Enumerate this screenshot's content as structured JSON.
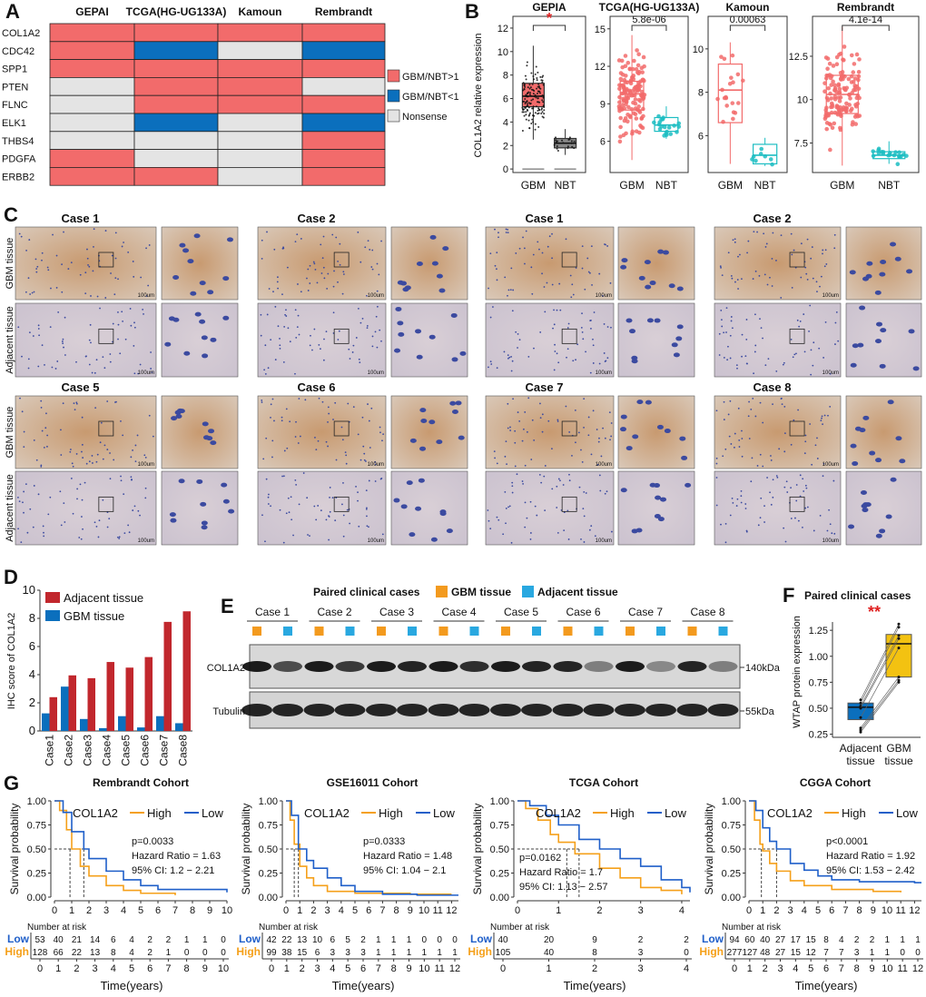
{
  "panel_labels": [
    "A",
    "B",
    "C",
    "D",
    "E",
    "F",
    "G"
  ],
  "panel_a": {
    "datasets": [
      "GEPAI",
      "TCGA(HG-UG133A)",
      "Kamoun",
      "Rembrandt"
    ],
    "genes": [
      "COL1A2",
      "CDC42",
      "SPP1",
      "PTEN",
      "FLNC",
      "ELK1",
      "THBS4",
      "PDGFA",
      "ERBB2"
    ],
    "matrix": [
      [
        "up",
        "up",
        "up",
        "up"
      ],
      [
        "up",
        "down",
        "none",
        "down"
      ],
      [
        "up",
        "up",
        "up",
        "up"
      ],
      [
        "none",
        "up",
        "up",
        "none"
      ],
      [
        "none",
        "up",
        "up",
        "up"
      ],
      [
        "none",
        "down",
        "none",
        "down"
      ],
      [
        "none",
        "none",
        "none",
        "up"
      ],
      [
        "up",
        "none",
        "none",
        "up"
      ],
      [
        "up",
        "up",
        "none",
        "up"
      ]
    ],
    "legend": [
      {
        "key": "up",
        "label": "GBM/NBT>1",
        "color": "#f26b6b"
      },
      {
        "key": "down",
        "label": "GBM/NBT<1",
        "color": "#0b6fbd"
      },
      {
        "key": "none",
        "label": "Nonsense",
        "color": "#e4e4e4"
      }
    ]
  },
  "panel_b": {
    "ylabel": "COL1A2 relative expression",
    "groups": [
      "GBM",
      "NBT"
    ],
    "plots": [
      {
        "title": "GEPIA",
        "annot": "*",
        "ylim": [
          -0.3,
          13
        ],
        "ticks": [
          0,
          2,
          4,
          6,
          8,
          10,
          12
        ],
        "boxes": [
          {
            "q1": 5.3,
            "med": 6.2,
            "q3": 7.3,
            "lo": 2.5,
            "hi": 10.5,
            "color": "#f26b6b"
          },
          {
            "q1": 1.8,
            "med": 2.2,
            "q3": 2.6,
            "lo": 1.2,
            "hi": 3.4,
            "color": "#888888"
          }
        ]
      },
      {
        "title": "TCGA(HG-UG133A)",
        "annot": "5.8e-06",
        "ylim": [
          3.5,
          16
        ],
        "ticks": [
          6,
          9,
          12,
          15
        ],
        "boxes": [
          {
            "q1": 8.5,
            "med": 9.8,
            "q3": 10.8,
            "lo": 4.5,
            "hi": 14.5,
            "color": "#f26b6b"
          },
          {
            "q1": 6.8,
            "med": 7.3,
            "q3": 7.9,
            "lo": 6.2,
            "hi": 8.8,
            "color": "#1cbdc2"
          }
        ]
      },
      {
        "title": "Kamoun",
        "annot": "0.00063",
        "ylim": [
          4.3,
          11.5
        ],
        "ticks": [
          6,
          8,
          10
        ],
        "boxes": [
          {
            "q1": 6.6,
            "med": 8.1,
            "q3": 9.3,
            "lo": 4.7,
            "hi": 10.3,
            "color": "#f26b6b"
          },
          {
            "q1": 4.7,
            "med": 5.1,
            "q3": 5.6,
            "lo": 4.6,
            "hi": 5.9,
            "color": "#1cbdc2"
          }
        ]
      },
      {
        "title": "Rembrandt",
        "annot": "4.1e-14",
        "ylim": [
          5.8,
          14.8
        ],
        "ticks": [
          7.5,
          10,
          12.5
        ],
        "boxes": [
          {
            "q1": 9.2,
            "med": 10.3,
            "q3": 11.4,
            "lo": 6.2,
            "hi": 14.2,
            "color": "#f26b6b"
          },
          {
            "q1": 6.6,
            "med": 6.8,
            "q3": 7.0,
            "lo": 6.3,
            "hi": 7.6,
            "color": "#1cbdc2"
          }
        ]
      }
    ]
  },
  "panel_c": {
    "row_labels": [
      "GBM tissue",
      "Adjacent tissue"
    ],
    "scale_bar": "100um",
    "cases_top": [
      "Case 1",
      "Case 2",
      "Case 1",
      "Case 2"
    ],
    "cases_bottom": [
      "Case 5",
      "Case 6",
      "Case 7",
      "Case 8"
    ]
  },
  "chart_data": [
    {
      "panel": "D",
      "type": "bar",
      "categories": [
        "Case1",
        "Case2",
        "Case3",
        "Case4",
        "Case5",
        "Case6",
        "Case7",
        "Case8"
      ],
      "ylabel": "IHC score of COL1A2",
      "ylim": [
        0,
        10
      ],
      "ticks": [
        0,
        2,
        4,
        6,
        8,
        10
      ],
      "legend": "top-left",
      "series": [
        {
          "name": "Adjacent tissue",
          "color": "#c1272d",
          "values": [
            2.4,
            3.95,
            3.75,
            4.9,
            4.5,
            5.25,
            7.75,
            8.5
          ]
        },
        {
          "name": "GBM tissue",
          "color": "#0b6fbd",
          "values": [
            1.25,
            3.15,
            0.85,
            0.2,
            1.05,
            0.25,
            1.05,
            0.55
          ]
        }
      ]
    },
    {
      "panel": "F",
      "type": "box",
      "title": "Paired clinical cases",
      "annot": "**",
      "ylabel": "WTAP protein expression",
      "categories": [
        "Adjacent tissue",
        "GBM tissue"
      ],
      "ylim": [
        0.22,
        1.33
      ],
      "ticks": [
        0.25,
        0.5,
        0.75,
        1.0,
        1.25
      ],
      "boxes": [
        {
          "q1": 0.39,
          "med": 0.51,
          "q3": 0.55,
          "color": "#0b6fbd"
        },
        {
          "q1": 0.8,
          "med": 1.12,
          "q3": 1.21,
          "color": "#f3c211"
        }
      ],
      "pairs": {
        "adjacent": [
          0.58,
          0.55,
          0.52,
          0.5,
          0.41,
          0.31,
          0.29,
          0.27
        ],
        "gbm": [
          1.31,
          1.28,
          1.2,
          1.17,
          1.08,
          0.8,
          0.77,
          0.75
        ]
      }
    },
    {
      "panel": "G",
      "type": "line",
      "ylabel": "Survival probability",
      "xlabel": "Time(years)",
      "legend_title": "COL1A2",
      "legend": [
        "High",
        "Low"
      ],
      "colors": {
        "High": "#f5a01a",
        "Low": "#1f5fc9"
      },
      "risk_title": "Number at risk",
      "risk_labels": [
        "Low",
        "High"
      ],
      "yticks": [
        "0.00",
        "0.25",
        "0.50",
        "0.75",
        "1.00"
      ],
      "cohorts": [
        {
          "title": "Rembrandt Cohort",
          "xmax": 10,
          "xticks": [
            0,
            1,
            2,
            3,
            4,
            5,
            6,
            7,
            8,
            9,
            10
          ],
          "stats": [
            "p=0.0033",
            "Hazard Ratio = 1.63",
            "95% CI: 1.2 − 2.21"
          ],
          "stats_pos": "right",
          "medians": [
            0.9,
            1.7
          ],
          "high": [
            [
              0,
              1
            ],
            [
              0.3,
              0.9
            ],
            [
              0.7,
              0.7
            ],
            [
              1,
              0.5
            ],
            [
              1.5,
              0.32
            ],
            [
              2,
              0.22
            ],
            [
              3,
              0.12
            ],
            [
              4,
              0.07
            ],
            [
              5,
              0.04
            ],
            [
              7,
              0.02
            ]
          ],
          "low": [
            [
              0,
              1
            ],
            [
              0.5,
              0.88
            ],
            [
              1,
              0.68
            ],
            [
              1.7,
              0.5
            ],
            [
              2,
              0.4
            ],
            [
              3,
              0.27
            ],
            [
              4,
              0.18
            ],
            [
              5,
              0.12
            ],
            [
              6,
              0.08
            ],
            [
              10,
              0.05
            ]
          ],
          "risk_low": [
            53,
            40,
            21,
            14,
            6,
            4,
            2,
            2,
            1,
            1,
            0
          ],
          "risk_high": [
            128,
            66,
            22,
            13,
            8,
            4,
            2,
            1,
            0,
            0,
            0
          ]
        },
        {
          "title": "GSE16011 Cohort",
          "xmax": 12.5,
          "xticks": [
            0,
            1,
            2,
            3,
            4,
            5,
            6,
            7,
            8,
            9,
            10,
            11,
            12
          ],
          "stats": [
            "p=0.0333",
            "Hazard Ratio = 1.48",
            "95% CI: 1.04 − 2.1"
          ],
          "stats_pos": "right",
          "medians": [
            0.6,
            0.9
          ],
          "high": [
            [
              0,
              1
            ],
            [
              0.3,
              0.8
            ],
            [
              0.6,
              0.55
            ],
            [
              1,
              0.32
            ],
            [
              1.5,
              0.2
            ],
            [
              2,
              0.12
            ],
            [
              3,
              0.06
            ],
            [
              5,
              0.04
            ],
            [
              9,
              0.03
            ],
            [
              12,
              0.03
            ]
          ],
          "low": [
            [
              0,
              1
            ],
            [
              0.4,
              0.85
            ],
            [
              0.9,
              0.5
            ],
            [
              1.5,
              0.38
            ],
            [
              2,
              0.3
            ],
            [
              3,
              0.2
            ],
            [
              4,
              0.12
            ],
            [
              5,
              0.06
            ],
            [
              7,
              0.03
            ],
            [
              9.5,
              0.02
            ]
          ],
          "risk_low": [
            42,
            22,
            13,
            10,
            6,
            5,
            2,
            1,
            1,
            1,
            0,
            0,
            0
          ],
          "risk_high": [
            99,
            38,
            15,
            6,
            3,
            3,
            3,
            1,
            1,
            1,
            1,
            1,
            1
          ]
        },
        {
          "title": "TCGA Cohort",
          "xmax": 4.2,
          "xticks": [
            0,
            1,
            2,
            3,
            4
          ],
          "stats": [
            "p=0.0162",
            "Hazard Ratio = 1.7",
            "95% CI: 1.13 − 2.57"
          ],
          "stats_pos": "left",
          "medians": [
            1.2,
            1.5
          ],
          "high": [
            [
              0,
              1
            ],
            [
              0.2,
              0.92
            ],
            [
              0.5,
              0.8
            ],
            [
              0.8,
              0.65
            ],
            [
              1,
              0.57
            ],
            [
              1.4,
              0.45
            ],
            [
              2,
              0.3
            ],
            [
              2.5,
              0.2
            ],
            [
              3,
              0.1
            ],
            [
              3.5,
              0.07
            ],
            [
              4,
              0.03
            ]
          ],
          "low": [
            [
              0,
              1
            ],
            [
              0.3,
              0.95
            ],
            [
              0.7,
              0.85
            ],
            [
              1,
              0.75
            ],
            [
              1.5,
              0.6
            ],
            [
              2,
              0.5
            ],
            [
              2.5,
              0.4
            ],
            [
              3,
              0.32
            ],
            [
              3.5,
              0.18
            ],
            [
              4,
              0.1
            ],
            [
              4.2,
              0.05
            ]
          ],
          "risk_low": [
            40,
            20,
            9,
            2,
            2
          ],
          "risk_high": [
            105,
            40,
            8,
            3,
            0
          ]
        },
        {
          "title": "CGGA Cohort",
          "xmax": 12.5,
          "xticks": [
            0,
            1,
            2,
            3,
            4,
            5,
            6,
            7,
            8,
            9,
            10,
            11,
            12
          ],
          "stats": [
            "p<0.0001",
            "Hazard Ratio = 1.92",
            "95% CI: 1.53 − 2.42"
          ],
          "stats_pos": "right",
          "medians": [
            0.9,
            2
          ],
          "high": [
            [
              0,
              1
            ],
            [
              0.4,
              0.8
            ],
            [
              0.8,
              0.55
            ],
            [
              1,
              0.48
            ],
            [
              1.5,
              0.35
            ],
            [
              2,
              0.27
            ],
            [
              3,
              0.17
            ],
            [
              4,
              0.12
            ],
            [
              6,
              0.08
            ],
            [
              9,
              0.06
            ],
            [
              11,
              0.05
            ]
          ],
          "low": [
            [
              0,
              1
            ],
            [
              0.5,
              0.9
            ],
            [
              1,
              0.72
            ],
            [
              1.5,
              0.58
            ],
            [
              2,
              0.5
            ],
            [
              3,
              0.35
            ],
            [
              4,
              0.28
            ],
            [
              5,
              0.22
            ],
            [
              6,
              0.18
            ],
            [
              8,
              0.16
            ],
            [
              12,
              0.15
            ]
          ],
          "risk_low": [
            94,
            60,
            40,
            27,
            17,
            15,
            8,
            4,
            2,
            2,
            1,
            1,
            1
          ],
          "risk_high": [
            277,
            127,
            48,
            27,
            15,
            12,
            7,
            7,
            3,
            1,
            1,
            0,
            0
          ]
        }
      ]
    }
  ],
  "panel_e": {
    "title": "Paired clinical cases",
    "legend": [
      {
        "label": "GBM tissue",
        "color": "#f39a1e"
      },
      {
        "label": "Adjacent tissue",
        "color": "#29a8e0"
      }
    ],
    "cases": [
      "Case 1",
      "Case 2",
      "Case 3",
      "Case 4",
      "Case 5",
      "Case 6",
      "Case 7",
      "Case 8"
    ],
    "rows": [
      {
        "label": "COL1A2",
        "size": "140kDa"
      },
      {
        "label": "Tubulin",
        "size": "55kDa"
      }
    ],
    "col1a2_intensity": [
      0.95,
      0.7,
      0.95,
      0.8,
      0.95,
      0.9,
      0.95,
      0.85,
      0.95,
      0.9,
      0.9,
      0.45,
      0.95,
      0.4,
      0.9,
      0.45
    ]
  }
}
